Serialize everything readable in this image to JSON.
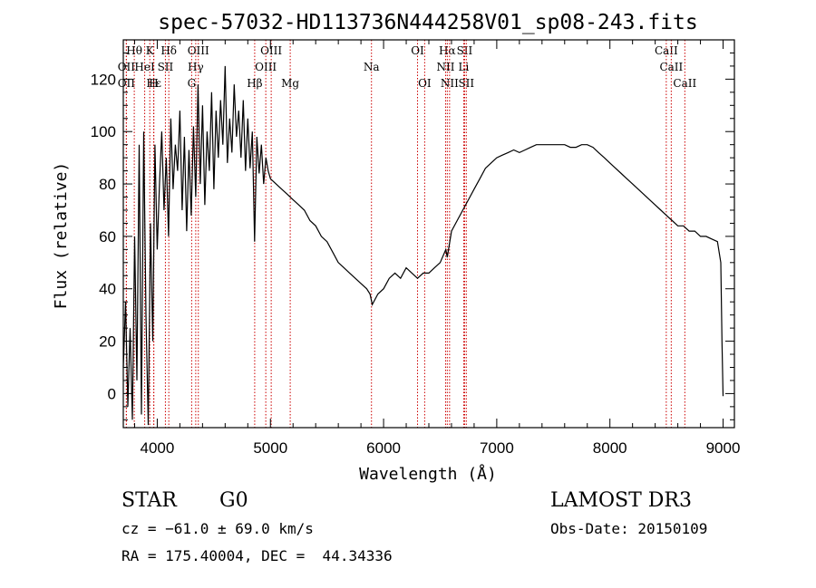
{
  "chart_data": {
    "type": "line",
    "title": "spec-57032-HD113736N444258V01_sp08-243.fits",
    "xlabel": "Wavelength (Å)",
    "ylabel": "Flux (relative)",
    "xlim": [
      3700,
      9100
    ],
    "ylim": [
      -13,
      135
    ],
    "xticks": [
      4000,
      5000,
      6000,
      7000,
      8000,
      9000
    ],
    "yticks": [
      0,
      20,
      40,
      60,
      80,
      100,
      120
    ],
    "grid": false,
    "line_color": "#000000",
    "marker_color": "#cc0000",
    "series": [
      {
        "x": [
          3700,
          3720,
          3740,
          3760,
          3780,
          3800,
          3820,
          3840,
          3860,
          3880,
          3900,
          3920,
          3940,
          3960,
          3980,
          4000,
          4020,
          4040,
          4060,
          4080,
          4100,
          4120,
          4140,
          4160,
          4180,
          4200,
          4220,
          4240,
          4260,
          4280,
          4300,
          4320,
          4340,
          4360,
          4380,
          4400,
          4420,
          4440,
          4460,
          4480,
          4500,
          4520,
          4540,
          4560,
          4580,
          4600,
          4620,
          4640,
          4660,
          4680,
          4700,
          4720,
          4740,
          4760,
          4780,
          4800,
          4820,
          4840,
          4860,
          4880,
          4900,
          4920,
          4940,
          4960,
          4980,
          5000,
          5050,
          5100,
          5150,
          5200,
          5250,
          5300,
          5350,
          5400,
          5450,
          5500,
          5550,
          5600,
          5650,
          5700,
          5750,
          5800,
          5850,
          5880,
          5900,
          5950,
          6000,
          6050,
          6100,
          6150,
          6200,
          6250,
          6300,
          6350,
          6400,
          6450,
          6500,
          6550,
          6563,
          6600,
          6650,
          6700,
          6750,
          6800,
          6850,
          6900,
          6950,
          7000,
          7050,
          7100,
          7150,
          7200,
          7250,
          7300,
          7350,
          7400,
          7450,
          7500,
          7550,
          7600,
          7650,
          7700,
          7750,
          7800,
          7850,
          7900,
          7950,
          8000,
          8050,
          8100,
          8150,
          8200,
          8250,
          8300,
          8350,
          8400,
          8450,
          8500,
          8550,
          8600,
          8650,
          8700,
          8750,
          8800,
          8850,
          8900,
          8950,
          8980,
          8990,
          9000
        ],
        "y": [
          10,
          35,
          -5,
          25,
          -10,
          60,
          5,
          95,
          -8,
          100,
          30,
          -12,
          65,
          20,
          95,
          55,
          80,
          100,
          70,
          90,
          60,
          105,
          78,
          95,
          85,
          108,
          70,
          98,
          62,
          93,
          68,
          102,
          75,
          118,
          80,
          110,
          72,
          100,
          85,
          115,
          78,
          108,
          90,
          112,
          95,
          125,
          88,
          105,
          92,
          118,
          98,
          108,
          90,
          112,
          85,
          105,
          86,
          100,
          58,
          98,
          84,
          95,
          80,
          90,
          85,
          82,
          80,
          78,
          76,
          74,
          72,
          70,
          66,
          64,
          60,
          58,
          54,
          50,
          48,
          46,
          44,
          42,
          40,
          38,
          34,
          38,
          40,
          44,
          46,
          44,
          48,
          46,
          44,
          46,
          46,
          48,
          50,
          55,
          52,
          62,
          66,
          70,
          74,
          78,
          82,
          86,
          88,
          90,
          91,
          92,
          93,
          92,
          93,
          94,
          95,
          95,
          95,
          95,
          95,
          95,
          94,
          94,
          95,
          95,
          94,
          92,
          90,
          88,
          86,
          84,
          82,
          80,
          78,
          76,
          74,
          72,
          70,
          68,
          66,
          64,
          64,
          62,
          62,
          60,
          60,
          59,
          58,
          50,
          20,
          -1
        ]
      }
    ],
    "line_markers": [
      {
        "label": "Hθ",
        "x": 3797,
        "row": 1
      },
      {
        "label": "K",
        "x": 3934,
        "row": 1
      },
      {
        "label": "Hδ",
        "x": 4102,
        "row": 1
      },
      {
        "label": "OIII",
        "x": 4363,
        "row": 1
      },
      {
        "label": "OIII",
        "x": 5007,
        "row": 1
      },
      {
        "label": "OI",
        "x": 6300,
        "row": 1
      },
      {
        "label": "Hα",
        "x": 6563,
        "row": 1
      },
      {
        "label": "SII",
        "x": 6716,
        "row": 1
      },
      {
        "label": "CaII",
        "x": 8498,
        "row": 1
      },
      {
        "label": "OII",
        "x": 3727,
        "row": 2
      },
      {
        "label": "HeI",
        "x": 3889,
        "row": 2
      },
      {
        "label": "SII",
        "x": 4072,
        "row": 2
      },
      {
        "label": "Hγ",
        "x": 4340,
        "row": 2
      },
      {
        "label": "OIII",
        "x": 4959,
        "row": 2
      },
      {
        "label": "Na",
        "x": 5893,
        "row": 2
      },
      {
        "label": "NII",
        "x": 6548,
        "row": 2
      },
      {
        "label": "Li",
        "x": 6708,
        "row": 2
      },
      {
        "label": "CaII",
        "x": 8542,
        "row": 2
      },
      {
        "label": "OII",
        "x": 3727,
        "row": 3
      },
      {
        "label": "Hε",
        "x": 3970,
        "row": 3
      },
      {
        "label": "H",
        "x": 3968,
        "row": 3
      },
      {
        "label": "G",
        "x": 4304,
        "row": 3
      },
      {
        "label": "Hβ",
        "x": 4861,
        "row": 3
      },
      {
        "label": "Mg",
        "x": 5175,
        "row": 3
      },
      {
        "label": "OI",
        "x": 6363,
        "row": 3
      },
      {
        "label": "NII",
        "x": 6583,
        "row": 3
      },
      {
        "label": "SII",
        "x": 6731,
        "row": 3
      },
      {
        "label": "CaII",
        "x": 8662,
        "row": 3
      }
    ]
  },
  "info": {
    "object_class": "STAR",
    "subclass": "G0",
    "survey": "LAMOST DR3",
    "redshift": "cz = −61.0 ± 69.0 km/s",
    "obs_date": "Obs-Date: 20150109",
    "coords": "RA = 175.40004, DEC =  44.34336"
  }
}
